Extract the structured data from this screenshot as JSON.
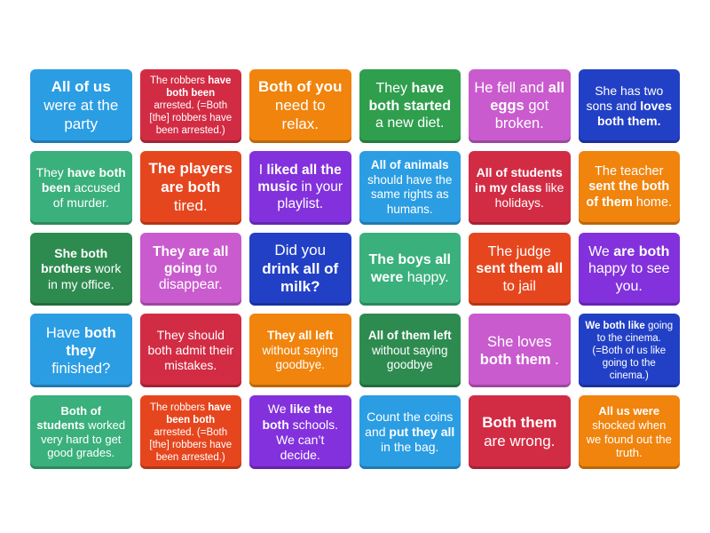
{
  "activity": {
    "type": "tile-grid",
    "columns": 6,
    "rows": 5,
    "background_color": "#ffffff",
    "text_color": "#ffffff"
  },
  "palette": {
    "blue": "#2b9de3",
    "crimson": "#d22c44",
    "orange": "#f0840d",
    "green": "#2f9e4d",
    "orchid": "#c95bce",
    "royal": "#2240c6",
    "seagreen": "#3ab07c",
    "orangered": "#e6461e",
    "violet": "#8231dd",
    "forest": "#2e8b50"
  },
  "tiles": [
    {
      "color": "blue",
      "fs": 17,
      "segments": [
        {
          "t": "All of us",
          "b": 1
        },
        {
          "t": " were at the party",
          "b": 0
        }
      ]
    },
    {
      "color": "crimson",
      "fs": 11.5,
      "segments": [
        {
          "t": "The robbers ",
          "b": 0
        },
        {
          "t": "have both been",
          "b": 1
        },
        {
          "t": " arrested. (=Both [the] robbers have been arrested.)",
          "b": 0
        }
      ]
    },
    {
      "color": "orange",
      "fs": 17,
      "segments": [
        {
          "t": "Both of you",
          "b": 1
        },
        {
          "t": " need to relax.",
          "b": 0
        }
      ]
    },
    {
      "color": "green",
      "fs": 16,
      "segments": [
        {
          "t": "They ",
          "b": 0
        },
        {
          "t": "have both started",
          "b": 1
        },
        {
          "t": " a new diet.",
          "b": 0
        }
      ]
    },
    {
      "color": "orchid",
      "fs": 16.5,
      "segments": [
        {
          "t": "He fell and ",
          "b": 0
        },
        {
          "t": "all eggs",
          "b": 1
        },
        {
          "t": " got broken.",
          "b": 0
        }
      ]
    },
    {
      "color": "royal",
      "fs": 14,
      "segments": [
        {
          "t": "She has two sons and ",
          "b": 0
        },
        {
          "t": "loves both them.",
          "b": 1
        }
      ]
    },
    {
      "color": "seagreen",
      "fs": 14,
      "segments": [
        {
          "t": "They ",
          "b": 0
        },
        {
          "t": "have both been",
          "b": 1
        },
        {
          "t": " accused of murder.",
          "b": 0
        }
      ]
    },
    {
      "color": "orangered",
      "fs": 17,
      "segments": [
        {
          "t": "The players are both",
          "b": 1
        },
        {
          "t": " tired.",
          "b": 0
        }
      ]
    },
    {
      "color": "violet",
      "fs": 15.5,
      "segments": [
        {
          "t": "I ",
          "b": 0
        },
        {
          "t": "liked all the music",
          "b": 1
        },
        {
          "t": " in your playlist.",
          "b": 0
        }
      ]
    },
    {
      "color": "blue",
      "fs": 13.5,
      "segments": [
        {
          "t": "All of animals",
          "b": 1
        },
        {
          "t": " should have the same rights as humans.",
          "b": 0
        }
      ]
    },
    {
      "color": "crimson",
      "fs": 14,
      "segments": [
        {
          "t": "All of students in my class",
          "b": 1
        },
        {
          "t": " like holidays.",
          "b": 0
        }
      ]
    },
    {
      "color": "orange",
      "fs": 14.5,
      "segments": [
        {
          "t": "The teacher ",
          "b": 0
        },
        {
          "t": "sent the both of them",
          "b": 1
        },
        {
          "t": " home.",
          "b": 0
        }
      ]
    },
    {
      "color": "forest",
      "fs": 14,
      "segments": [
        {
          "t": "She both brothers",
          "b": 1
        },
        {
          "t": " work in my office.",
          "b": 0
        }
      ]
    },
    {
      "color": "orchid",
      "fs": 15.5,
      "segments": [
        {
          "t": "They are all going",
          "b": 1
        },
        {
          "t": " to disappear.",
          "b": 0
        }
      ]
    },
    {
      "color": "royal",
      "fs": 17,
      "segments": [
        {
          "t": "Did you ",
          "b": 0
        },
        {
          "t": "drink all of milk?",
          "b": 1
        }
      ]
    },
    {
      "color": "seagreen",
      "fs": 16,
      "segments": [
        {
          "t": "The boys all were",
          "b": 1
        },
        {
          "t": " happy.",
          "b": 0
        }
      ]
    },
    {
      "color": "orangered",
      "fs": 16,
      "segments": [
        {
          "t": "The judge ",
          "b": 0
        },
        {
          "t": "sent them all",
          "b": 1
        },
        {
          "t": " to jail",
          "b": 0
        }
      ]
    },
    {
      "color": "violet",
      "fs": 16,
      "segments": [
        {
          "t": "We ",
          "b": 0
        },
        {
          "t": "are both",
          "b": 1
        },
        {
          "t": " happy to see you.",
          "b": 0
        }
      ]
    },
    {
      "color": "blue",
      "fs": 16.5,
      "segments": [
        {
          "t": "Have ",
          "b": 0
        },
        {
          "t": "both they",
          "b": 1
        },
        {
          "t": " finished?",
          "b": 0
        }
      ]
    },
    {
      "color": "crimson",
      "fs": 14,
      "segments": [
        {
          "t": "They should both admit their mistakes.",
          "b": 0
        }
      ]
    },
    {
      "color": "orange",
      "fs": 13.5,
      "segments": [
        {
          "t": "They all left",
          "b": 1
        },
        {
          "t": " without saying goodbye.",
          "b": 0
        }
      ]
    },
    {
      "color": "forest",
      "fs": 13.5,
      "segments": [
        {
          "t": "All of them left",
          "b": 1
        },
        {
          "t": " without saying goodbye",
          "b": 0
        }
      ]
    },
    {
      "color": "orchid",
      "fs": 16.5,
      "segments": [
        {
          "t": "She loves ",
          "b": 0
        },
        {
          "t": "both them",
          "b": 1
        },
        {
          "t": " .",
          "b": 0
        }
      ]
    },
    {
      "color": "royal",
      "fs": 11.5,
      "segments": [
        {
          "t": "We both like",
          "b": 1
        },
        {
          "t": " going to the cinema. (=Both of us like going to the cinema.)",
          "b": 0
        }
      ]
    },
    {
      "color": "seagreen",
      "fs": 13,
      "segments": [
        {
          "t": "Both of students",
          "b": 1
        },
        {
          "t": " worked very hard to get good grades.",
          "b": 0
        }
      ]
    },
    {
      "color": "orangered",
      "fs": 11.5,
      "segments": [
        {
          "t": "The robbers ",
          "b": 0
        },
        {
          "t": "have been both",
          "b": 1
        },
        {
          "t": " arrested. (=Both [the] robbers have been arrested.)",
          "b": 0
        }
      ]
    },
    {
      "color": "violet",
      "fs": 14,
      "segments": [
        {
          "t": "We ",
          "b": 0
        },
        {
          "t": "like the both",
          "b": 1
        },
        {
          "t": " schools. We can’t decide.",
          "b": 0
        }
      ]
    },
    {
      "color": "blue",
      "fs": 14,
      "segments": [
        {
          "t": "Count the coins and ",
          "b": 0
        },
        {
          "t": "put they all",
          "b": 1
        },
        {
          "t": " in the bag.",
          "b": 0
        }
      ]
    },
    {
      "color": "crimson",
      "fs": 17,
      "segments": [
        {
          "t": "Both them",
          "b": 1
        },
        {
          "t": " are wrong.",
          "b": 0
        }
      ]
    },
    {
      "color": "orange",
      "fs": 13,
      "segments": [
        {
          "t": "All us were",
          "b": 1
        },
        {
          "t": " shocked when we found out the truth.",
          "b": 0
        }
      ]
    }
  ]
}
